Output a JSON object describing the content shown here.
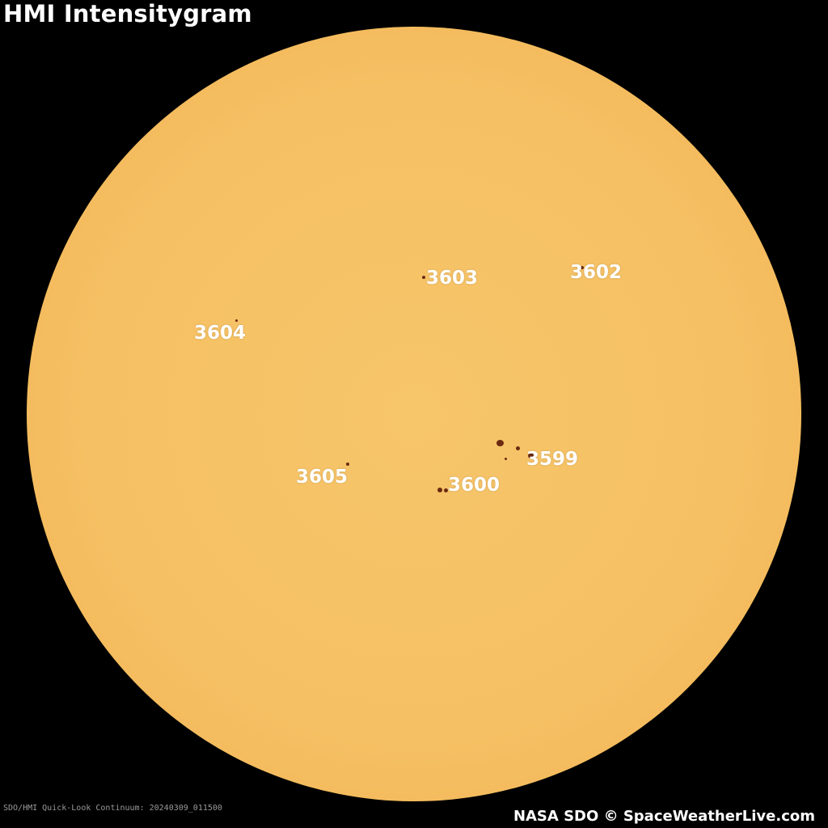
{
  "title": "HMI Intensitygram",
  "caption": "SDO/HMI Quick-Look Continuum: 20240309_011500",
  "credit": "NASA SDO © SpaceWeatherLive.com",
  "colors": {
    "background": "#000000",
    "sun": "#f5c063",
    "sunspot": "#6b2a10",
    "label": "#ffffff"
  },
  "regions": [
    {
      "number": "3599"
    },
    {
      "number": "3600"
    },
    {
      "number": "3602"
    },
    {
      "number": "3603"
    },
    {
      "number": "3604"
    },
    {
      "number": "3605"
    }
  ]
}
